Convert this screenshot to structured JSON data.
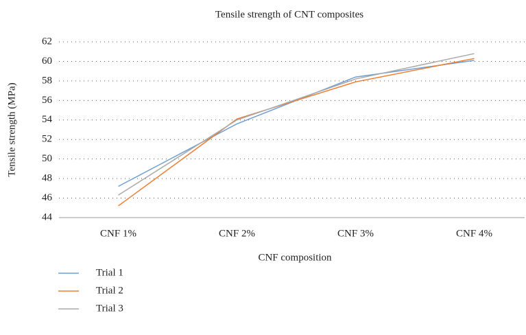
{
  "chart_data": {
    "type": "line",
    "title": "Tensile strength of CNT composites",
    "x_label": "CNF composition",
    "y_label": "Tensile strength (MPa)",
    "categories": [
      "CNF 1%",
      "CNF 2%",
      "CNF 3%",
      "CNF 4%"
    ],
    "series": [
      {
        "name": "Trial 1",
        "color": "#6f9fd4",
        "values": [
          47.2,
          53.6,
          58.4,
          60.1
        ]
      },
      {
        "name": "Trial 2",
        "color": "#ed7d31",
        "values": [
          45.2,
          54.1,
          57.9,
          60.3
        ]
      },
      {
        "name": "Trial 3",
        "color": "#a9a9a9",
        "values": [
          46.3,
          54.0,
          58.2,
          60.8
        ]
      }
    ],
    "ylim": [
      44,
      62
    ],
    "yticks": [
      44,
      46,
      48,
      50,
      52,
      54,
      56,
      58,
      60,
      62
    ],
    "grid": true,
    "legend": "bottom-left"
  }
}
